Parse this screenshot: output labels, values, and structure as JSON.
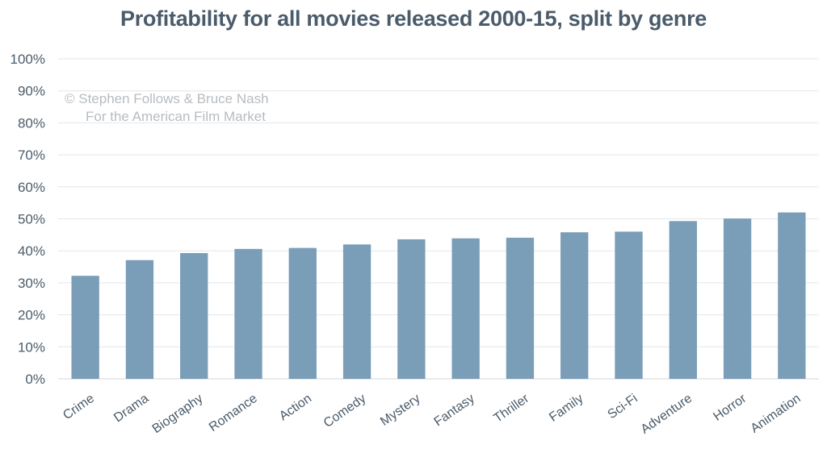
{
  "chart_data": {
    "type": "bar",
    "title": "Profitability for all movies released 2000-15, split by genre",
    "xlabel": "",
    "ylabel": "",
    "ylim": [
      0,
      100
    ],
    "yticks": [
      "0%",
      "10%",
      "20%",
      "30%",
      "40%",
      "50%",
      "60%",
      "70%",
      "80%",
      "90%",
      "100%"
    ],
    "grid": true,
    "categories": [
      "Crime",
      "Drama",
      "Biography",
      "Romance",
      "Action",
      "Comedy",
      "Mystery",
      "Fantasy",
      "Thriller",
      "Family",
      "Sci-Fi",
      "Adventure",
      "Horror",
      "Animation"
    ],
    "values": [
      32.2,
      37.1,
      39.3,
      40.6,
      40.9,
      42.0,
      43.6,
      43.9,
      44.1,
      45.8,
      46.0,
      49.3,
      50.1,
      52.0
    ],
    "bar_color": "#7a9db8",
    "watermark": {
      "line1": "© Stephen Follows & Bruce Nash",
      "line2": "For the American Film Market"
    }
  }
}
